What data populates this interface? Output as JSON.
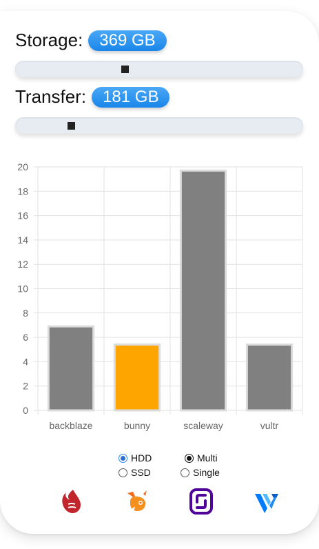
{
  "storage": {
    "label": "Storage:",
    "value": "369 GB",
    "slider_fraction": 0.369
  },
  "transfer": {
    "label": "Transfer:",
    "value": "181 GB",
    "slider_fraction": 0.181
  },
  "chart_data": {
    "type": "bar",
    "categories": [
      "backblaze",
      "bunny",
      "scaleway",
      "vultr"
    ],
    "values": [
      6.9,
      5.4,
      19.7,
      5.4
    ],
    "colors": [
      "#808080",
      "#ffa500",
      "#808080",
      "#808080"
    ],
    "ylim": [
      0,
      20
    ],
    "yticks": [
      0,
      2,
      4,
      6,
      8,
      10,
      12,
      14,
      16,
      18,
      20
    ],
    "grid": true
  },
  "options": {
    "hdd": {
      "label": "HDD",
      "checked": true
    },
    "ssd": {
      "label": "SSD",
      "checked": false
    },
    "multi": {
      "label": "Multi",
      "checked": true
    },
    "single": {
      "label": "Single",
      "checked": false
    }
  },
  "logos": [
    "backblaze-logo",
    "bunny-logo",
    "scaleway-logo",
    "vultr-logo"
  ]
}
